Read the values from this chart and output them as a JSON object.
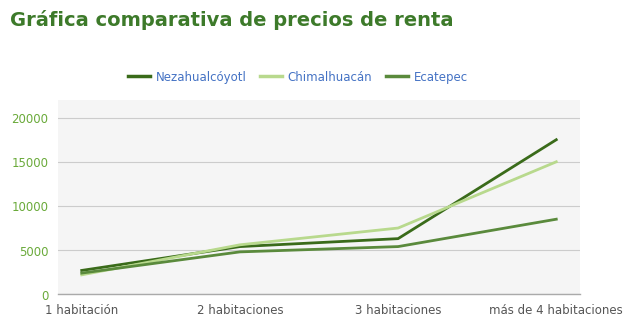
{
  "title": "Gráfica comparativa de precios de renta",
  "title_color": "#3d7a2a",
  "title_fontsize": 14,
  "categories": [
    "1 habitación",
    "2 habitaciones",
    "3 habitaciones",
    "más de 4 habitaciones"
  ],
  "series": [
    {
      "label": "Nezahualcóyotl",
      "values": [
        2700,
        5400,
        6300,
        17500
      ],
      "color": "#3a6b1a",
      "linewidth": 2.0
    },
    {
      "label": "Chimalhuacán",
      "values": [
        2200,
        5600,
        7500,
        15000
      ],
      "color": "#b8d98d",
      "linewidth": 2.0
    },
    {
      "label": "Ecatepec",
      "values": [
        2400,
        4800,
        5400,
        8500
      ],
      "color": "#5a8a3c",
      "linewidth": 2.0
    }
  ],
  "ylim": [
    0,
    22000
  ],
  "yticks": [
    0,
    5000,
    10000,
    15000,
    20000
  ],
  "background_color": "#ffffff",
  "plot_background": "#f5f5f5",
  "grid_color": "#cccccc",
  "legend_text_color": "#4472c4",
  "ytick_color": "#6aaa3a",
  "xtick_color": "#555555",
  "legend_fontsize": 8.5,
  "tick_fontsize": 8.5,
  "title_fontweight": "bold"
}
